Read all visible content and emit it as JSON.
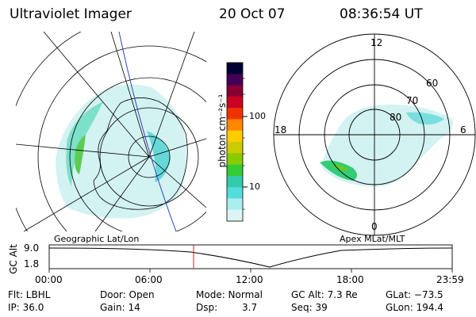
{
  "header": {
    "title": "Ultraviolet Imager",
    "date": "20 Oct 07",
    "time": "08:36:54 UT"
  },
  "colorbar": {
    "unit_label": "photon cm⁻²s⁻¹",
    "ticks": [
      "100",
      "10"
    ],
    "colors": [
      "#000033",
      "#440055",
      "#880033",
      "#cc0022",
      "#ee3300",
      "#ff8800",
      "#ffcc00",
      "#cccc00",
      "#88cc00",
      "#33cc33",
      "#33ccaa",
      "#55dddd",
      "#aaeeee",
      "#ddf4f4"
    ]
  },
  "left_map": {
    "label": "Geographic Lat/Lon"
  },
  "right_map": {
    "label": "Apex MLat/MLT",
    "mlt_labels": {
      "top": "12",
      "left": "18",
      "right": "6",
      "bottom": "0"
    },
    "mlat_labels": [
      "60",
      "70",
      "80"
    ]
  },
  "altitude_plot": {
    "ylabel": "GC Alt",
    "yticks": [
      "9.0",
      "1.8"
    ],
    "xticks": [
      "00:00",
      "06:00",
      "12:00",
      "18:00",
      "23:59"
    ],
    "marker_time": "08:36:54"
  },
  "info": {
    "flt": "Flt: LBHL",
    "ip": "IP: 36.0",
    "door": "Door: Open",
    "gain": "Gain: 14",
    "mode": "Mode: Normal",
    "dsp_label": "Dsp:",
    "dsp_value": "3.7",
    "gc_alt": "GC Alt: 7.3 Re",
    "seq": "Seq: 39",
    "glat": "GLat: −73.5",
    "glon": "GLon: 194.4"
  }
}
